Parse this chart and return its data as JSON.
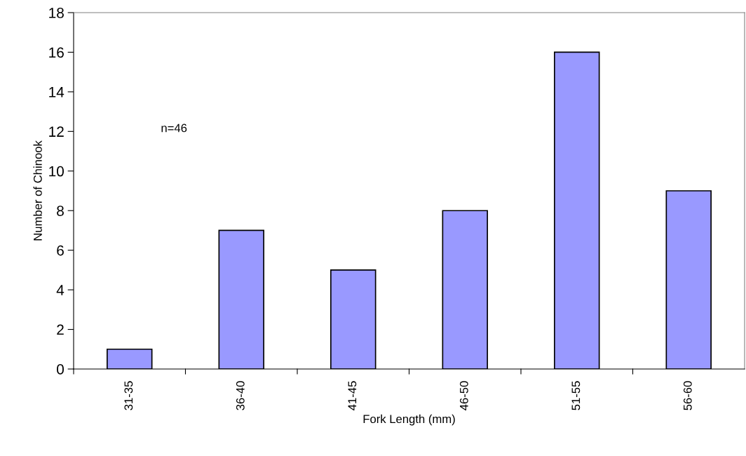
{
  "chart_data": {
    "type": "bar",
    "xlabel": "Fork Length (mm)",
    "ylabel": "Number of Chinook",
    "categories": [
      "31-35",
      "36-40",
      "41-45",
      "46-50",
      "51-55",
      "56-60"
    ],
    "values": [
      1,
      7,
      5,
      8,
      16,
      9
    ],
    "color": "#9999ff",
    "ylim": [
      0,
      18
    ],
    "yticks": [
      0,
      2,
      4,
      6,
      8,
      10,
      12,
      14,
      16,
      18
    ],
    "grid": false,
    "legend": false,
    "annotations": [
      "n=46"
    ]
  }
}
